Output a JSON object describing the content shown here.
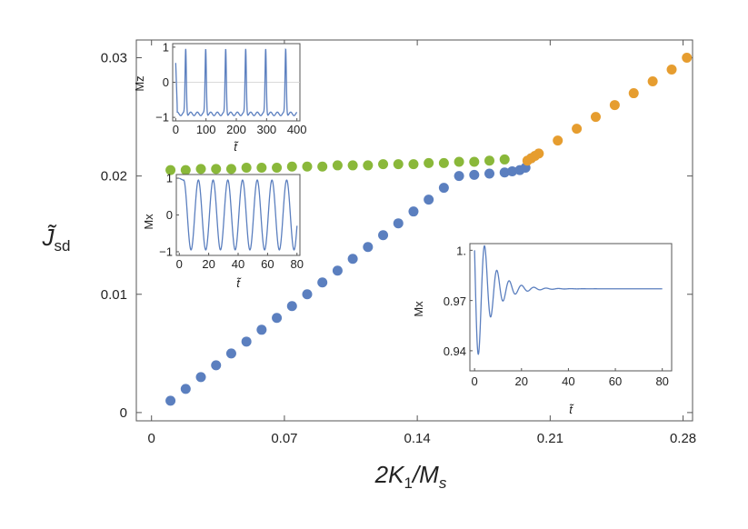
{
  "chart_data": [
    {
      "type": "scatter",
      "name": "main",
      "xlabel": "2K₁/Mₛ",
      "ylabel": "J̃sd",
      "xlim": [
        -0.008,
        0.285
      ],
      "ylim": [
        -0.0007,
        0.0315
      ],
      "x_ticks": [
        0,
        0.07,
        0.14,
        0.21,
        0.28
      ],
      "x_tick_labels": [
        "0",
        "0.07",
        "0.14",
        "0.21",
        "0.28"
      ],
      "y_ticks": [
        0,
        0.01,
        0.02,
        0.03
      ],
      "y_tick_labels": [
        "0",
        "0.01",
        "0.02",
        "0.03"
      ],
      "series": [
        {
          "name": "blue",
          "color": "#5b7fbf",
          "x": [
            0.01,
            0.018,
            0.026,
            0.034,
            0.042,
            0.05,
            0.058,
            0.066,
            0.074,
            0.082,
            0.09,
            0.098,
            0.106,
            0.114,
            0.122,
            0.13,
            0.138,
            0.146,
            0.154,
            0.162,
            0.17,
            0.178,
            0.186,
            0.19,
            0.194,
            0.197,
            0.2
          ],
          "y": [
            0.001,
            0.002,
            0.003,
            0.004,
            0.005,
            0.006,
            0.007,
            0.008,
            0.009,
            0.01,
            0.011,
            0.012,
            0.013,
            0.014,
            0.015,
            0.016,
            0.017,
            0.018,
            0.019,
            0.02,
            0.0201,
            0.0202,
            0.0203,
            0.0204,
            0.0205,
            0.0207,
            0.0215
          ]
        },
        {
          "name": "green",
          "color": "#8ab83a",
          "x": [
            0.01,
            0.018,
            0.026,
            0.034,
            0.042,
            0.05,
            0.058,
            0.066,
            0.074,
            0.082,
            0.09,
            0.098,
            0.106,
            0.114,
            0.122,
            0.13,
            0.138,
            0.146,
            0.154,
            0.162,
            0.17,
            0.178,
            0.186
          ],
          "y": [
            0.0205,
            0.0205,
            0.0206,
            0.0206,
            0.0206,
            0.0207,
            0.0207,
            0.0207,
            0.0208,
            0.0208,
            0.0208,
            0.0209,
            0.0209,
            0.0209,
            0.021,
            0.021,
            0.021,
            0.0211,
            0.0211,
            0.0212,
            0.0212,
            0.0213,
            0.0214
          ]
        },
        {
          "name": "orange",
          "color": "#e69d2f",
          "x": [
            0.198,
            0.2,
            0.202,
            0.204,
            0.214,
            0.224,
            0.234,
            0.244,
            0.254,
            0.264,
            0.274,
            0.282
          ],
          "y": [
            0.0213,
            0.0215,
            0.0217,
            0.0219,
            0.023,
            0.024,
            0.025,
            0.026,
            0.027,
            0.028,
            0.029,
            0.03
          ]
        }
      ]
    },
    {
      "type": "line",
      "name": "inset-mz",
      "xlabel": "t̃",
      "ylabel": "Mz",
      "xlim": [
        -10,
        410
      ],
      "ylim": [
        -1.1,
        1.1
      ],
      "x_ticks": [
        0,
        100,
        200,
        300,
        400
      ],
      "x_tick_labels": [
        "0",
        "100",
        "200",
        "300",
        "400"
      ],
      "y_ticks": [
        -1,
        0,
        1
      ],
      "y_tick_labels": [
        "−1",
        "0",
        "1"
      ],
      "period": 66,
      "color": "#5b7fbf"
    },
    {
      "type": "line",
      "name": "inset-mx-left",
      "xlabel": "t̃",
      "ylabel": "Mx",
      "xlim": [
        -2,
        82
      ],
      "ylim": [
        -1.1,
        1.1
      ],
      "x_ticks": [
        0,
        20,
        40,
        60,
        80
      ],
      "x_tick_labels": [
        "0",
        "20",
        "40",
        "60",
        "80"
      ],
      "y_ticks": [
        -1,
        0,
        1
      ],
      "y_tick_labels": [
        "−1",
        "0",
        "1"
      ],
      "period": 10,
      "color": "#5b7fbf"
    },
    {
      "type": "line",
      "name": "inset-mx-right",
      "xlabel": "t̃",
      "ylabel": "Mx",
      "xlim": [
        -2,
        84
      ],
      "ylim": [
        0.928,
        1.004
      ],
      "x_ticks": [
        0,
        20,
        40,
        60,
        80
      ],
      "x_tick_labels": [
        "0",
        "20",
        "40",
        "60",
        "80"
      ],
      "y_ticks": [
        0.94,
        0.97,
        1
      ],
      "y_tick_labels": [
        "0.94",
        "0.97",
        "1."
      ],
      "steady_value": 0.977,
      "color": "#5b7fbf"
    }
  ]
}
